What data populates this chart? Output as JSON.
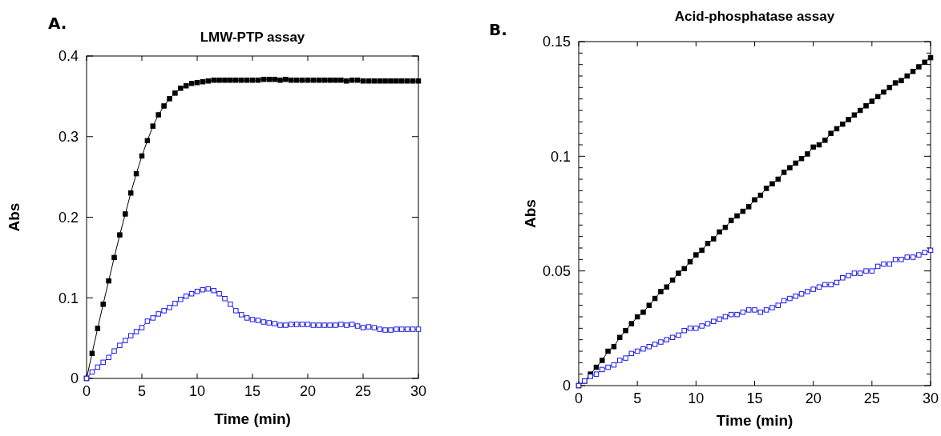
{
  "chart_data": [
    {
      "type": "line",
      "title": "LMW-PTP assay",
      "xlabel": "Time (min)",
      "ylabel": "Abs",
      "annotations": [
        "A."
      ],
      "x": [
        0,
        0.5,
        1,
        1.5,
        2,
        2.5,
        3,
        3.5,
        4,
        4.5,
        5,
        5.5,
        6,
        6.5,
        7,
        7.5,
        8,
        8.5,
        9,
        9.5,
        10,
        10.5,
        11,
        11.5,
        12,
        12.5,
        13,
        13.5,
        14,
        14.5,
        15,
        15.5,
        16,
        16.5,
        17,
        17.5,
        18,
        18.5,
        19,
        19.5,
        20,
        20.5,
        21,
        21.5,
        22,
        22.5,
        23,
        23.5,
        24,
        24.5,
        25,
        25.5,
        26,
        26.5,
        27,
        27.5,
        28,
        28.5,
        29,
        29.5,
        30
      ],
      "series": [
        {
          "color": "#000000",
          "values": [
            0,
            0.031,
            0.062,
            0.092,
            0.121,
            0.15,
            0.178,
            0.204,
            0.23,
            0.254,
            0.276,
            0.295,
            0.313,
            0.327,
            0.338,
            0.347,
            0.354,
            0.36,
            0.363,
            0.366,
            0.367,
            0.368,
            0.369,
            0.37,
            0.37,
            0.37,
            0.37,
            0.37,
            0.37,
            0.37,
            0.37,
            0.37,
            0.371,
            0.371,
            0.371,
            0.37,
            0.371,
            0.37,
            0.37,
            0.37,
            0.37,
            0.37,
            0.37,
            0.37,
            0.37,
            0.37,
            0.37,
            0.369,
            0.37,
            0.37,
            0.369,
            0.369,
            0.369,
            0.369,
            0.369,
            0.369,
            0.369,
            0.369,
            0.369,
            0.369,
            0.369
          ]
        },
        {
          "color": "#1a1ae6",
          "values": [
            0,
            0.008,
            0.014,
            0.02,
            0.026,
            0.034,
            0.041,
            0.047,
            0.053,
            0.058,
            0.063,
            0.071,
            0.075,
            0.08,
            0.084,
            0.088,
            0.093,
            0.098,
            0.102,
            0.105,
            0.108,
            0.11,
            0.111,
            0.109,
            0.105,
            0.099,
            0.092,
            0.084,
            0.079,
            0.075,
            0.073,
            0.072,
            0.07,
            0.069,
            0.068,
            0.066,
            0.066,
            0.067,
            0.067,
            0.067,
            0.067,
            0.066,
            0.066,
            0.066,
            0.066,
            0.066,
            0.067,
            0.066,
            0.067,
            0.065,
            0.063,
            0.064,
            0.063,
            0.061,
            0.06,
            0.06,
            0.061,
            0.061,
            0.061,
            0.061,
            0.061
          ]
        }
      ],
      "xlim": [
        0,
        30
      ],
      "xticks": [
        0,
        5,
        10,
        15,
        20,
        25,
        30
      ],
      "ylim": [
        0,
        0.4
      ],
      "yticks": [
        0,
        0.1,
        0.2,
        0.3,
        0.4
      ],
      "grid": false,
      "marker": "square"
    },
    {
      "type": "line",
      "title": "Acid-phosphatase assay",
      "xlabel": "Time (min)",
      "ylabel": "Abs",
      "annotations": [
        "B."
      ],
      "x": [
        0,
        0.5,
        1,
        1.5,
        2,
        2.5,
        3,
        3.5,
        4,
        4.5,
        5,
        5.5,
        6,
        6.5,
        7,
        7.5,
        8,
        8.5,
        9,
        9.5,
        10,
        10.5,
        11,
        11.5,
        12,
        12.5,
        13,
        13.5,
        14,
        14.5,
        15,
        15.5,
        16,
        16.5,
        17,
        17.5,
        18,
        18.5,
        19,
        19.5,
        20,
        20.5,
        21,
        21.5,
        22,
        22.5,
        23,
        23.5,
        24,
        24.5,
        25,
        25.5,
        26,
        26.5,
        27,
        27.5,
        28,
        28.5,
        29,
        29.5,
        30
      ],
      "series": [
        {
          "color": "#000000",
          "values": [
            0,
            0.002,
            0.005,
            0.008,
            0.011,
            0.015,
            0.017,
            0.021,
            0.024,
            0.027,
            0.03,
            0.032,
            0.035,
            0.038,
            0.041,
            0.043,
            0.046,
            0.049,
            0.051,
            0.054,
            0.057,
            0.059,
            0.062,
            0.064,
            0.067,
            0.069,
            0.072,
            0.074,
            0.076,
            0.078,
            0.081,
            0.083,
            0.086,
            0.088,
            0.09,
            0.093,
            0.095,
            0.097,
            0.099,
            0.101,
            0.104,
            0.105,
            0.107,
            0.11,
            0.112,
            0.114,
            0.116,
            0.118,
            0.12,
            0.122,
            0.124,
            0.126,
            0.128,
            0.13,
            0.132,
            0.133,
            0.135,
            0.137,
            0.139,
            0.141,
            0.143
          ]
        },
        {
          "color": "#1a1ae6",
          "values": [
            0,
            0.002,
            0.004,
            0.005,
            0.007,
            0.008,
            0.009,
            0.011,
            0.012,
            0.014,
            0.015,
            0.016,
            0.017,
            0.018,
            0.019,
            0.02,
            0.021,
            0.022,
            0.024,
            0.025,
            0.025,
            0.026,
            0.027,
            0.028,
            0.029,
            0.03,
            0.031,
            0.031,
            0.032,
            0.033,
            0.033,
            0.032,
            0.033,
            0.034,
            0.035,
            0.037,
            0.038,
            0.039,
            0.04,
            0.041,
            0.042,
            0.043,
            0.044,
            0.044,
            0.045,
            0.047,
            0.048,
            0.049,
            0.049,
            0.05,
            0.05,
            0.052,
            0.053,
            0.053,
            0.055,
            0.055,
            0.056,
            0.056,
            0.057,
            0.058,
            0.059
          ]
        }
      ],
      "xlim": [
        0,
        30
      ],
      "xticks": [
        0,
        5,
        10,
        15,
        20,
        25,
        30
      ],
      "ylim": [
        0,
        0.15
      ],
      "yticks": [
        0,
        {
          "value": 0.005,
          "label": null
        },
        {
          "value": 0.01,
          "label": null
        },
        {
          "value": 0.015,
          "label": null
        },
        {
          "value": 0.02,
          "label": null
        },
        {
          "value": 0.025,
          "label": null
        },
        {
          "value": 0.03,
          "label": null
        },
        {
          "value": 0.035,
          "label": null
        },
        {
          "value": 0.04,
          "label": null
        },
        {
          "value": 0.045,
          "label": null
        },
        0.05,
        {
          "value": 0.055,
          "label": null
        },
        {
          "value": 0.06,
          "label": null
        },
        {
          "value": 0.065,
          "label": null
        },
        {
          "value": 0.07,
          "label": null
        },
        {
          "value": 0.075,
          "label": null
        },
        {
          "value": 0.08,
          "label": null
        },
        {
          "value": 0.085,
          "label": null
        },
        {
          "value": 0.09,
          "label": null
        },
        {
          "value": 0.095,
          "label": null
        },
        0.1,
        {
          "value": 0.105,
          "label": null
        },
        {
          "value": 0.11,
          "label": null
        },
        {
          "value": 0.115,
          "label": null
        },
        {
          "value": 0.12,
          "label": null
        },
        {
          "value": 0.125,
          "label": null
        },
        {
          "value": 0.13,
          "label": null
        },
        {
          "value": 0.135,
          "label": null
        },
        {
          "value": 0.14,
          "label": null
        },
        {
          "value": 0.145,
          "label": null
        },
        0.15
      ],
      "grid": false,
      "marker": "square"
    }
  ]
}
